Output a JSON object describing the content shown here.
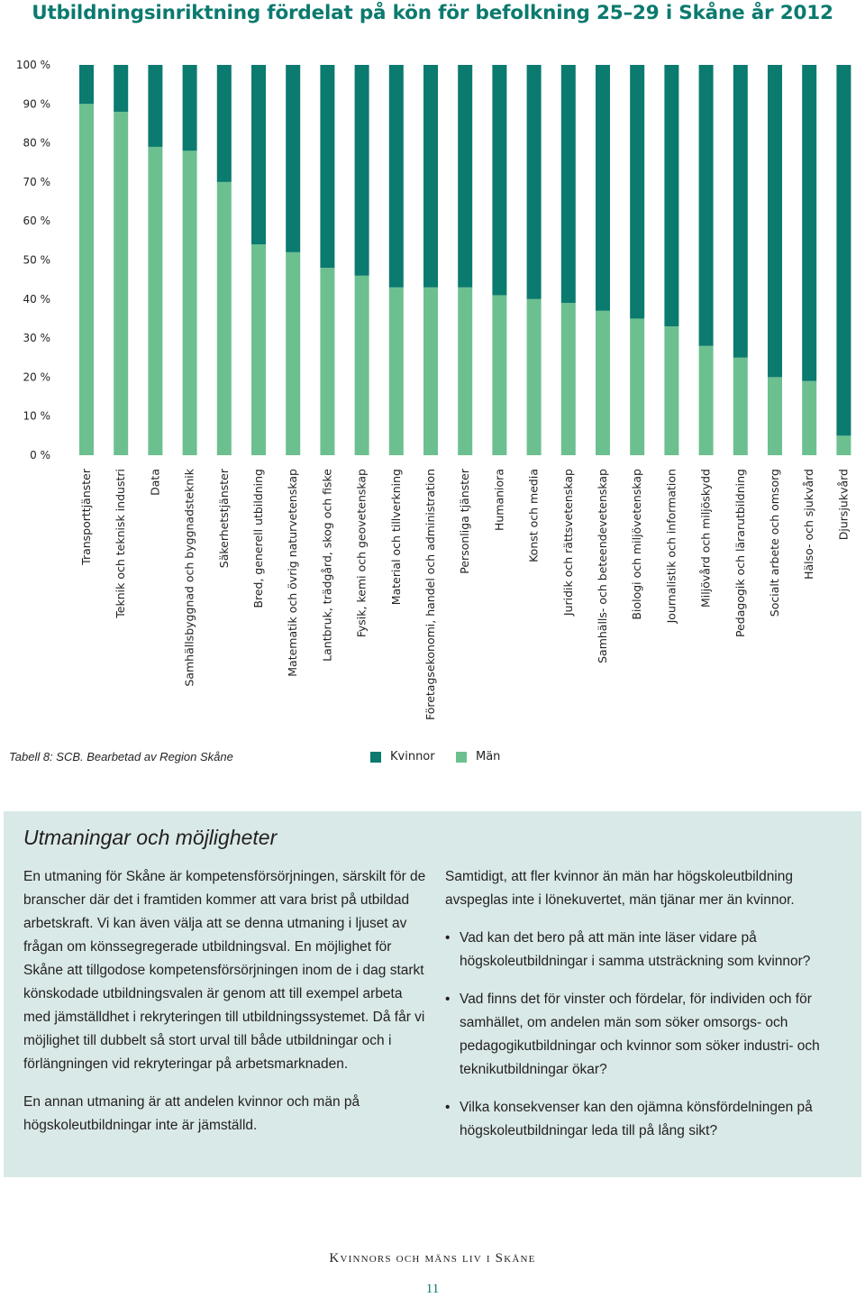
{
  "colors": {
    "kvinnor": "#0b7a6f",
    "man": "#6cc08f",
    "accent": "#0b7a6f",
    "panel_bg": "#d9e9e7"
  },
  "chart_data": {
    "type": "bar",
    "stacked": true,
    "title": "Utbildningsinriktning fördelat på kön för befolkning 25–29 i Skåne år 2012",
    "yticks": [
      "0 %",
      "10 %",
      "20 %",
      "30 %",
      "40 %",
      "50 %",
      "60 %",
      "70 %",
      "80 %",
      "90 %",
      "100 %"
    ],
    "ylim": [
      0,
      100
    ],
    "grid": false,
    "categories": [
      "Transporttjänster",
      "Teknik och teknisk industri",
      "Data",
      "Samhällsbyggnad och byggnadsteknik",
      "Säkerhetstjänster",
      "Bred, generell utbildning",
      "Matematik och övrig naturvetenskap",
      "Lantbruk, trädgård, skog och fiske",
      "Fysik, kemi och geovetenskap",
      "Material och tillverkning",
      "Företagsekonomi, handel och administration",
      "Personliga tjänster",
      "Humaniora",
      "Konst och media",
      "Juridik och rättsvetenskap",
      "Samhälls- och beteendevetenskap",
      "Biologi och miljövetenskap",
      "Journalistik och information",
      "Miljövård och miljöskydd",
      "Pedagogik och lärarutbildning",
      "Socialt arbete och omsorg",
      "Hälso- och sjukvård",
      "Djursjukvård"
    ],
    "series": [
      {
        "name": "Män",
        "values": [
          90,
          88,
          79,
          78,
          70,
          54,
          52,
          48,
          46,
          43,
          43,
          43,
          41,
          40,
          39,
          37,
          35,
          33,
          28,
          25,
          20,
          19,
          5
        ]
      },
      {
        "name": "Kvinnor",
        "values": [
          10,
          12,
          21,
          22,
          30,
          46,
          48,
          52,
          54,
          57,
          57,
          57,
          59,
          60,
          61,
          63,
          65,
          67,
          72,
          75,
          80,
          81,
          95
        ]
      }
    ],
    "legend": {
      "position": "bottom",
      "items": [
        "Kvinnor",
        "Män"
      ]
    }
  },
  "source": "Tabell 8: SCB. Bearbetad av Region Skåne",
  "panel": {
    "title": "Utmaningar och möjligheter",
    "left_paragraphs": [
      "En utmaning för Skåne är kompetensförsörjningen, särskilt för de branscher där det i framtiden kommer att vara brist på utbildad arbetskraft. Vi kan även välja att se denna utmaning i ljuset av frågan om könssegregerade utbildningsval. En möjlighet för Skåne att tillgodose kompetensförsörjningen inom de i dag starkt könskodade utbildningsvalen är genom att till exempel arbeta med jämställdhet i rekryteringen till utbildningssystemet. Då får vi möjlighet till dubbelt så stort urval till både utbildningar och i förlängningen vid rekryteringar på arbetsmarknaden.",
      "En annan utmaning är att andelen kvinnor och män på högskoleutbildningar inte är jämställd."
    ],
    "right_intro": "Samtidigt, att fler kvinnor än män har högskoleutbildning avspeglas inte i lönekuvertet, män tjänar mer än kvinnor.",
    "bullets": [
      "Vad kan det bero på att män inte läser vidare på högskoleutbildningar i samma utsträckning som kvinnor?",
      "Vad finns det för vinster och fördelar, för individen och för samhället, om andelen män som söker omsorgs- och pedagogikutbildningar och kvinnor som söker industri- och teknikutbildningar ökar?",
      "Vilka konsekvenser kan den ojämna könsfördelningen på högskoleutbildningar leda till på lång sikt?"
    ]
  },
  "footer": {
    "publication": "Kvinnors och mäns liv i Skåne",
    "page": "11"
  }
}
